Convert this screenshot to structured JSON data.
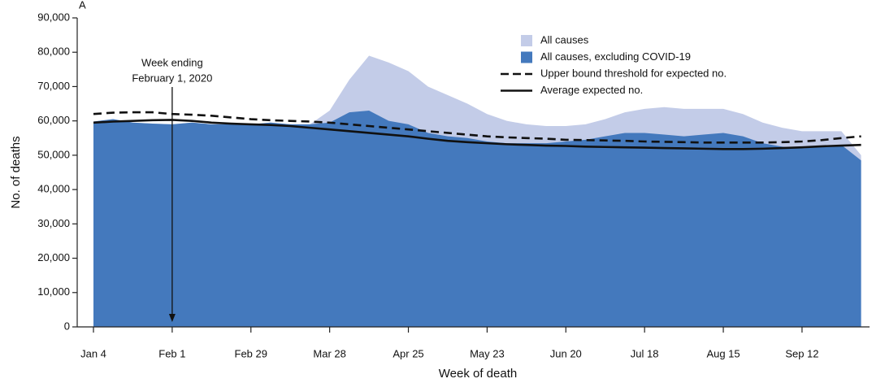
{
  "chart_data": {
    "type": "area",
    "panel_label": "A",
    "annotation": [
      "Week ending",
      "February 1, 2020"
    ],
    "annotation_category": 4,
    "x_label": "Week of death",
    "y_label": "No. of deaths",
    "categories": [
      "Jan 4",
      null,
      null,
      null,
      "Feb 1",
      null,
      null,
      null,
      "Feb 29",
      null,
      null,
      null,
      "Mar 28",
      null,
      null,
      null,
      "Apr 25",
      null,
      null,
      null,
      "May 23",
      null,
      null,
      null,
      "Jun 20",
      null,
      null,
      null,
      "Jul 18",
      null,
      null,
      null,
      "Aug 15",
      null,
      null,
      null,
      "Sep 12",
      null,
      null,
      null
    ],
    "ylim": [
      0,
      90000
    ],
    "yticks": [
      0,
      {
        "value": 10000,
        "label": "10,000"
      },
      {
        "value": 20000,
        "label": "20,000"
      },
      {
        "value": 30000,
        "label": "30,000"
      },
      {
        "value": 40000,
        "label": "40,000"
      },
      {
        "value": 50000,
        "label": "50,000"
      },
      {
        "value": 60000,
        "label": "60,000"
      },
      {
        "value": 70000,
        "label": "70,000"
      },
      {
        "value": 80000,
        "label": "80,000"
      },
      {
        "value": 90000,
        "label": "90,000"
      }
    ],
    "series": [
      {
        "name": "All causes",
        "kind": "area",
        "color": "#c3cce8",
        "values": [
          59800,
          60500,
          59500,
          59200,
          59000,
          59500,
          59000,
          59000,
          59000,
          59500,
          59000,
          59000,
          63000,
          72000,
          79000,
          77000,
          74500,
          70000,
          67500,
          65000,
          62000,
          60000,
          59000,
          58500,
          58500,
          59000,
          60500,
          62500,
          63500,
          64000,
          63500,
          63500,
          63500,
          62000,
          59500,
          58000,
          57000,
          57000,
          57000,
          50000
        ]
      },
      {
        "name": "All causes, excluding COVID-19",
        "kind": "area",
        "color": "#4479bd",
        "values": [
          59800,
          60500,
          59500,
          59200,
          59000,
          59500,
          59000,
          59000,
          59000,
          59500,
          59000,
          59000,
          59500,
          62500,
          63000,
          60000,
          59000,
          56500,
          55500,
          55000,
          54000,
          53500,
          53500,
          53500,
          54000,
          54500,
          55500,
          56500,
          56500,
          56000,
          55500,
          56000,
          56500,
          55500,
          53500,
          52500,
          52000,
          52500,
          53000,
          48500
        ]
      },
      {
        "name": "Upper bound threshold for expected no.",
        "kind": "line",
        "dash": true,
        "color": "#111111",
        "values": [
          62000,
          62400,
          62500,
          62500,
          62000,
          61800,
          61500,
          61000,
          60500,
          60200,
          60000,
          59800,
          59500,
          59000,
          58500,
          58000,
          57500,
          57000,
          56500,
          56000,
          55500,
          55200,
          55000,
          54800,
          54500,
          54400,
          54300,
          54200,
          54000,
          53900,
          53800,
          53700,
          53700,
          53700,
          53700,
          53800,
          54000,
          54400,
          55000,
          55500
        ]
      },
      {
        "name": "Average expected no.",
        "kind": "line",
        "dash": false,
        "color": "#111111",
        "values": [
          59500,
          59800,
          60000,
          60200,
          60300,
          60000,
          59500,
          59200,
          59000,
          58800,
          58500,
          58000,
          57500,
          57000,
          56500,
          56000,
          55500,
          54800,
          54200,
          53800,
          53500,
          53200,
          53000,
          52800,
          52700,
          52500,
          52400,
          52300,
          52200,
          52100,
          52000,
          51900,
          51800,
          51800,
          51900,
          52100,
          52300,
          52600,
          52800,
          53000
        ]
      }
    ]
  }
}
